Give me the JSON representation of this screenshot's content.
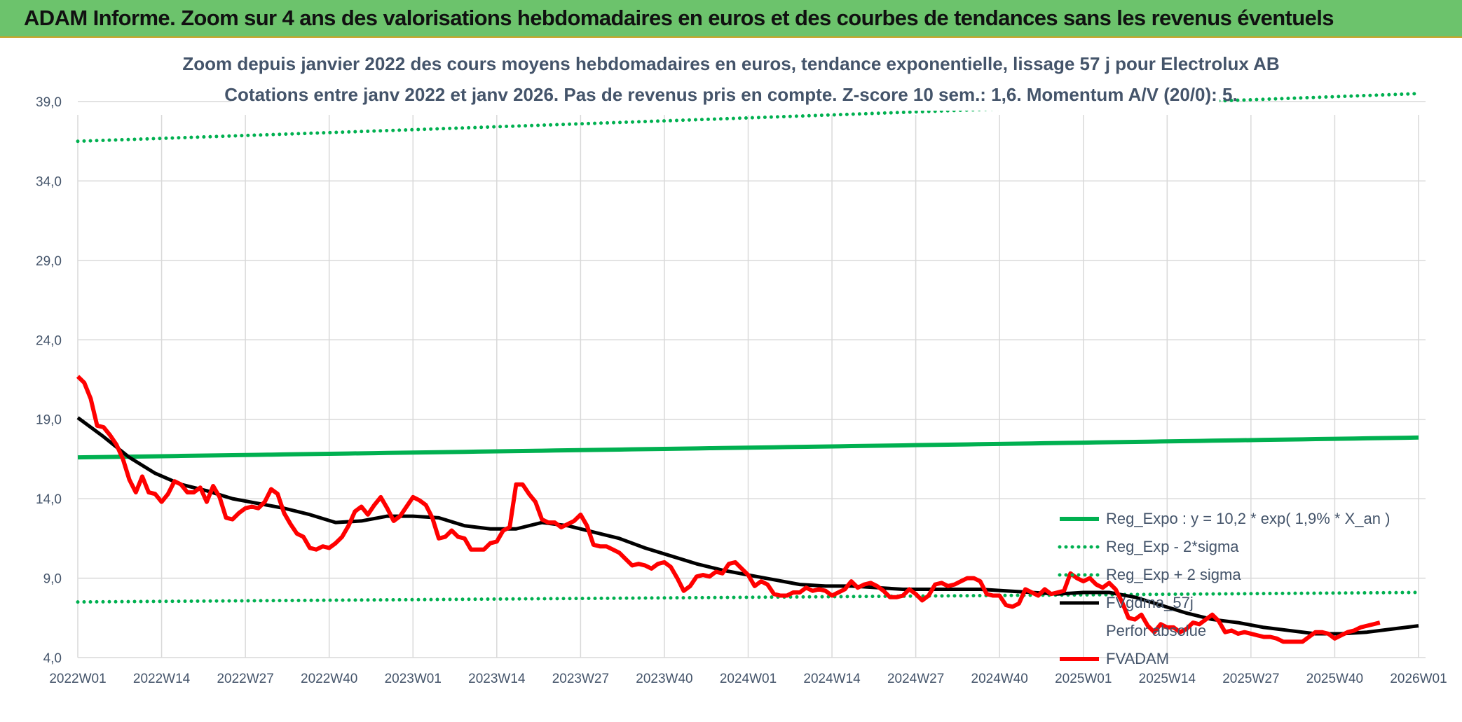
{
  "banner": {
    "title": "ADAM Informe. Zoom sur 4 ans des valorisations hebdomadaires en euros et des courbes de tendances sans les revenus éventuels"
  },
  "colors": {
    "banner_bg": "#6cc36c",
    "green": "#00b050",
    "red": "#ff0000",
    "black": "#000000",
    "text": "#44546a",
    "grid": "#d9d9d9"
  },
  "chart_data": {
    "type": "line",
    "title": "Zoom depuis janvier 2022 des cours moyens hebdomadaires en euros, tendance exponentielle, lissage 57 j pour Electrolux AB",
    "subtitle": "Cotations entre janv 2022 et janv 2026. Pas de revenus pris en compte. Z-score 10 sem.: 1,6. Momentum A/V (20/0): 5.",
    "xlabel": "",
    "ylabel": "",
    "ylim": [
      4,
      40
    ],
    "yticks": [
      "4,0",
      "9,0",
      "14,0",
      "19,0",
      "24,0",
      "29,0",
      "34,0",
      "39,0"
    ],
    "xticks": [
      "2022W01",
      "2022W14",
      "2022W27",
      "2022W40",
      "2023W01",
      "2023W14",
      "2023W27",
      "2023W40",
      "2024W01",
      "2024W14",
      "2024W27",
      "2024W40",
      "2025W01",
      "2025W14",
      "2025W27",
      "2025W40",
      "2026W01"
    ],
    "grid": true,
    "legend_position": "bottom-right",
    "x_weeks_since_start": [
      0,
      208
    ],
    "series": [
      {
        "name": "Reg_Expo : y = 10,2 * exp( 1,9% *  X_an )",
        "style": "solid-green",
        "start": 16.6,
        "end": 17.85
      },
      {
        "name": "Reg_Exp - 2*sigma",
        "style": "dotted-green",
        "start": 7.5,
        "end": 8.1
      },
      {
        "name": "Reg_Exp + 2 sigma",
        "style": "dotted-green",
        "start": 36.5,
        "end": 39.5
      },
      {
        "name": "FVgdma_57j",
        "style": "solid-black",
        "points": [
          [
            0,
            19.1
          ],
          [
            4,
            17.9
          ],
          [
            8,
            16.6
          ],
          [
            12,
            15.6
          ],
          [
            16,
            14.9
          ],
          [
            20,
            14.5
          ],
          [
            24,
            14.0
          ],
          [
            28,
            13.7
          ],
          [
            32,
            13.4
          ],
          [
            36,
            13.0
          ],
          [
            40,
            12.5
          ],
          [
            44,
            12.6
          ],
          [
            48,
            12.9
          ],
          [
            52,
            12.9
          ],
          [
            56,
            12.8
          ],
          [
            60,
            12.3
          ],
          [
            64,
            12.1
          ],
          [
            68,
            12.1
          ],
          [
            72,
            12.5
          ],
          [
            76,
            12.3
          ],
          [
            80,
            11.9
          ],
          [
            84,
            11.5
          ],
          [
            88,
            10.9
          ],
          [
            92,
            10.4
          ],
          [
            96,
            9.9
          ],
          [
            100,
            9.5
          ],
          [
            104,
            9.2
          ],
          [
            108,
            8.9
          ],
          [
            112,
            8.6
          ],
          [
            116,
            8.5
          ],
          [
            120,
            8.5
          ],
          [
            124,
            8.4
          ],
          [
            128,
            8.3
          ],
          [
            132,
            8.3
          ],
          [
            136,
            8.3
          ],
          [
            140,
            8.3
          ],
          [
            144,
            8.2
          ],
          [
            148,
            8.1
          ],
          [
            152,
            8.0
          ],
          [
            156,
            8.1
          ],
          [
            160,
            8.1
          ],
          [
            164,
            7.8
          ],
          [
            168,
            7.3
          ],
          [
            172,
            6.8
          ],
          [
            176,
            6.4
          ],
          [
            180,
            6.2
          ],
          [
            184,
            5.9
          ],
          [
            188,
            5.7
          ],
          [
            192,
            5.5
          ],
          [
            196,
            5.5
          ],
          [
            200,
            5.6
          ],
          [
            204,
            5.8
          ],
          [
            208,
            6.0
          ]
        ]
      },
      {
        "name": "Perfor absolue",
        "style": "none"
      },
      {
        "name": "FVADAM",
        "style": "solid-red",
        "points": [
          [
            0,
            21.7
          ],
          [
            1,
            21.3
          ],
          [
            2,
            20.3
          ],
          [
            3,
            18.6
          ],
          [
            4,
            18.5
          ],
          [
            5,
            18.0
          ],
          [
            6,
            17.4
          ],
          [
            7,
            16.5
          ],
          [
            8,
            15.2
          ],
          [
            9,
            14.4
          ],
          [
            10,
            15.4
          ],
          [
            11,
            14.4
          ],
          [
            12,
            14.3
          ],
          [
            13,
            13.8
          ],
          [
            14,
            14.3
          ],
          [
            15,
            15.1
          ],
          [
            16,
            14.9
          ],
          [
            17,
            14.4
          ],
          [
            18,
            14.4
          ],
          [
            19,
            14.7
          ],
          [
            20,
            13.8
          ],
          [
            21,
            14.8
          ],
          [
            22,
            14.1
          ],
          [
            23,
            12.8
          ],
          [
            24,
            12.7
          ],
          [
            25,
            13.1
          ],
          [
            26,
            13.4
          ],
          [
            27,
            13.5
          ],
          [
            28,
            13.4
          ],
          [
            29,
            13.8
          ],
          [
            30,
            14.6
          ],
          [
            31,
            14.3
          ],
          [
            32,
            13.1
          ],
          [
            33,
            12.4
          ],
          [
            34,
            11.8
          ],
          [
            35,
            11.6
          ],
          [
            36,
            10.9
          ],
          [
            37,
            10.8
          ],
          [
            38,
            11.0
          ],
          [
            39,
            10.9
          ],
          [
            40,
            11.2
          ],
          [
            41,
            11.6
          ],
          [
            42,
            12.3
          ],
          [
            43,
            13.2
          ],
          [
            44,
            13.5
          ],
          [
            45,
            13.0
          ],
          [
            46,
            13.6
          ],
          [
            47,
            14.1
          ],
          [
            48,
            13.4
          ],
          [
            49,
            12.6
          ],
          [
            50,
            12.9
          ],
          [
            51,
            13.5
          ],
          [
            52,
            14.1
          ],
          [
            53,
            13.9
          ],
          [
            54,
            13.6
          ],
          [
            55,
            12.8
          ],
          [
            56,
            11.5
          ],
          [
            57,
            11.6
          ],
          [
            58,
            12.0
          ],
          [
            59,
            11.6
          ],
          [
            60,
            11.5
          ],
          [
            61,
            10.8
          ],
          [
            62,
            10.8
          ],
          [
            63,
            10.8
          ],
          [
            64,
            11.2
          ],
          [
            65,
            11.3
          ],
          [
            66,
            12.0
          ],
          [
            67,
            12.2
          ],
          [
            68,
            14.9
          ],
          [
            69,
            14.9
          ],
          [
            70,
            14.3
          ],
          [
            71,
            13.8
          ],
          [
            72,
            12.7
          ],
          [
            73,
            12.5
          ],
          [
            74,
            12.5
          ],
          [
            75,
            12.2
          ],
          [
            76,
            12.4
          ],
          [
            77,
            12.6
          ],
          [
            78,
            13.0
          ],
          [
            79,
            12.3
          ],
          [
            80,
            11.1
          ],
          [
            81,
            11.0
          ],
          [
            82,
            11.0
          ],
          [
            83,
            10.8
          ],
          [
            84,
            10.6
          ],
          [
            85,
            10.2
          ],
          [
            86,
            9.8
          ],
          [
            87,
            9.9
          ],
          [
            88,
            9.8
          ],
          [
            89,
            9.6
          ],
          [
            90,
            9.9
          ],
          [
            91,
            10.0
          ],
          [
            92,
            9.7
          ],
          [
            93,
            9.0
          ],
          [
            94,
            8.2
          ],
          [
            95,
            8.5
          ],
          [
            96,
            9.1
          ],
          [
            97,
            9.2
          ],
          [
            98,
            9.1
          ],
          [
            99,
            9.4
          ],
          [
            100,
            9.3
          ],
          [
            101,
            9.9
          ],
          [
            102,
            10.0
          ],
          [
            103,
            9.6
          ],
          [
            104,
            9.2
          ],
          [
            105,
            8.5
          ],
          [
            106,
            8.8
          ],
          [
            107,
            8.6
          ],
          [
            108,
            8.0
          ],
          [
            109,
            7.9
          ],
          [
            110,
            7.9
          ],
          [
            111,
            8.1
          ],
          [
            112,
            8.1
          ],
          [
            113,
            8.4
          ],
          [
            114,
            8.2
          ],
          [
            115,
            8.3
          ],
          [
            116,
            8.2
          ],
          [
            117,
            7.9
          ],
          [
            118,
            8.1
          ],
          [
            119,
            8.3
          ],
          [
            120,
            8.8
          ],
          [
            121,
            8.4
          ],
          [
            122,
            8.6
          ],
          [
            123,
            8.7
          ],
          [
            124,
            8.5
          ],
          [
            125,
            8.2
          ],
          [
            126,
            7.8
          ],
          [
            127,
            7.8
          ],
          [
            128,
            7.9
          ],
          [
            129,
            8.3
          ],
          [
            130,
            8.0
          ],
          [
            131,
            7.6
          ],
          [
            132,
            7.9
          ],
          [
            133,
            8.6
          ],
          [
            134,
            8.7
          ],
          [
            135,
            8.5
          ],
          [
            136,
            8.6
          ],
          [
            137,
            8.8
          ],
          [
            138,
            9.0
          ],
          [
            139,
            9.0
          ],
          [
            140,
            8.8
          ],
          [
            141,
            8.0
          ],
          [
            142,
            7.9
          ],
          [
            143,
            7.9
          ],
          [
            144,
            7.3
          ],
          [
            145,
            7.2
          ],
          [
            146,
            7.4
          ],
          [
            147,
            8.3
          ],
          [
            148,
            8.1
          ],
          [
            149,
            7.9
          ],
          [
            150,
            8.3
          ],
          [
            151,
            8.0
          ],
          [
            152,
            8.1
          ],
          [
            153,
            8.2
          ],
          [
            154,
            9.3
          ],
          [
            155,
            9.0
          ],
          [
            156,
            8.8
          ],
          [
            157,
            9.0
          ],
          [
            158,
            8.6
          ],
          [
            159,
            8.4
          ],
          [
            160,
            8.7
          ],
          [
            161,
            8.3
          ],
          [
            162,
            7.5
          ],
          [
            163,
            6.5
          ],
          [
            164,
            6.4
          ],
          [
            165,
            6.7
          ],
          [
            166,
            6.0
          ],
          [
            167,
            5.6
          ],
          [
            168,
            6.1
          ],
          [
            169,
            5.9
          ],
          [
            170,
            5.9
          ],
          [
            171,
            5.6
          ],
          [
            172,
            5.8
          ],
          [
            173,
            6.2
          ],
          [
            174,
            6.1
          ],
          [
            175,
            6.4
          ],
          [
            176,
            6.7
          ],
          [
            177,
            6.3
          ],
          [
            178,
            5.6
          ],
          [
            179,
            5.7
          ],
          [
            180,
            5.5
          ],
          [
            181,
            5.6
          ],
          [
            182,
            5.5
          ],
          [
            183,
            5.4
          ],
          [
            184,
            5.3
          ],
          [
            185,
            5.3
          ],
          [
            186,
            5.2
          ],
          [
            187,
            5.0
          ],
          [
            188,
            5.0
          ],
          [
            189,
            5.0
          ],
          [
            190,
            5.0
          ],
          [
            191,
            5.3
          ],
          [
            192,
            5.6
          ],
          [
            193,
            5.6
          ],
          [
            194,
            5.5
          ],
          [
            195,
            5.2
          ],
          [
            196,
            5.4
          ],
          [
            197,
            5.6
          ],
          [
            198,
            5.7
          ],
          [
            199,
            5.9
          ],
          [
            200,
            6.0
          ],
          [
            201,
            6.1
          ],
          [
            202,
            6.2
          ]
        ]
      }
    ]
  }
}
